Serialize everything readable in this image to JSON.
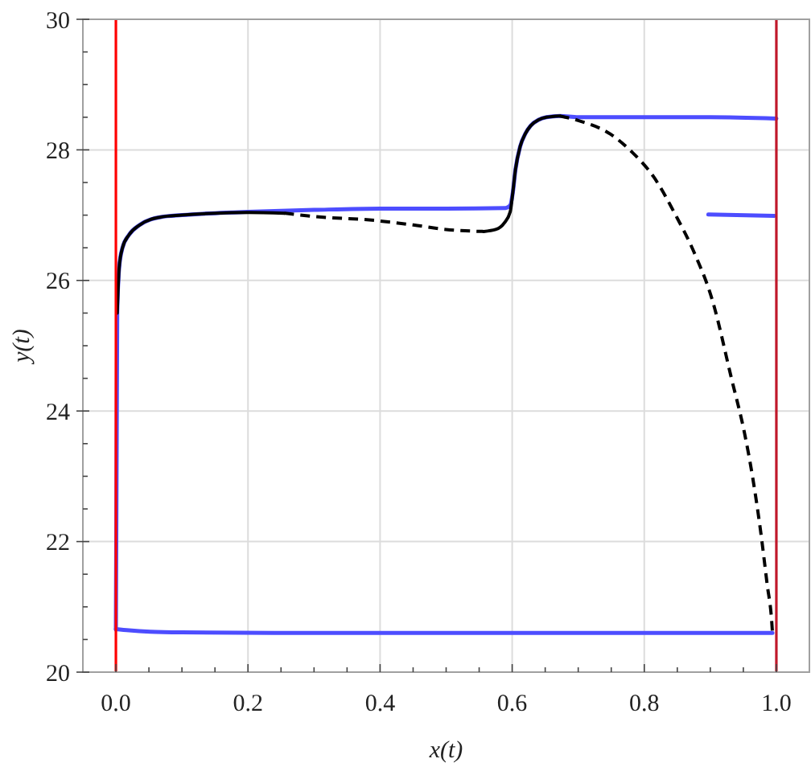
{
  "chart_data": {
    "type": "line",
    "xlabel": "x(t)",
    "ylabel": "y(t)",
    "xlim": [
      -0.05,
      1.05
    ],
    "ylim": [
      20,
      30
    ],
    "xticks": [
      {
        "value": 0,
        "label": "0.0"
      },
      {
        "value": 0.05,
        "label": null
      },
      {
        "value": 0.1,
        "label": null
      },
      {
        "value": 0.15,
        "label": null
      },
      {
        "value": 0.2,
        "label": "0.2"
      },
      {
        "value": 0.25,
        "label": null
      },
      {
        "value": 0.3,
        "label": null
      },
      {
        "value": 0.35,
        "label": null
      },
      {
        "value": 0.4,
        "label": "0.4"
      },
      {
        "value": 0.45,
        "label": null
      },
      {
        "value": 0.5,
        "label": null
      },
      {
        "value": 0.55,
        "label": null
      },
      {
        "value": 0.6,
        "label": "0.6"
      },
      {
        "value": 0.65,
        "label": null
      },
      {
        "value": 0.7,
        "label": null
      },
      {
        "value": 0.75,
        "label": null
      },
      {
        "value": 0.8,
        "label": "0.8"
      },
      {
        "value": 0.85,
        "label": null
      },
      {
        "value": 0.9,
        "label": null
      },
      {
        "value": 0.95,
        "label": null
      },
      {
        "value": 1,
        "label": "1.0"
      }
    ],
    "yticks": [
      20,
      {
        "value": 20.5,
        "label": null
      },
      {
        "value": 21,
        "label": null
      },
      {
        "value": 21.5,
        "label": null
      },
      22,
      {
        "value": 22.5,
        "label": null
      },
      {
        "value": 23,
        "label": null
      },
      {
        "value": 23.5,
        "label": null
      },
      24,
      {
        "value": 24.5,
        "label": null
      },
      {
        "value": 25,
        "label": null
      },
      {
        "value": 25.5,
        "label": null
      },
      26,
      {
        "value": 26.5,
        "label": null
      },
      {
        "value": 27,
        "label": null
      },
      {
        "value": 27.5,
        "label": null
      },
      28,
      {
        "value": 28.5,
        "label": null
      },
      {
        "value": 29,
        "label": null
      },
      {
        "value": 29.5,
        "label": null
      },
      30
    ],
    "grid": true,
    "ref_lines": [
      {
        "axis": "x",
        "value": 0,
        "color": "#ff0000"
      },
      {
        "axis": "x",
        "value": 1,
        "color": "#c0182a"
      }
    ],
    "series": [
      {
        "color": "#4d4dff",
        "line_style": "solid",
        "x": [
          0,
          0.002,
          0.005,
          0.01,
          0.02,
          0.036,
          0.068,
          0.1,
          0.15,
          0.2,
          0.3,
          0.4,
          0.5,
          0.59,
          0.597,
          0.601,
          0.605,
          0.612,
          0.62,
          0.628,
          0.64,
          0.652,
          0.672,
          0.7,
          0.8,
          0.9,
          1.0
        ],
        "values": [
          20.65,
          25.5,
          26.2,
          26.5,
          26.7,
          26.85,
          26.97,
          27.0,
          27.03,
          27.05,
          27.08,
          27.1,
          27.1,
          27.11,
          27.15,
          27.35,
          27.7,
          28.05,
          28.25,
          28.37,
          28.46,
          28.5,
          28.52,
          28.5,
          28.5,
          28.5,
          28.48
        ]
      },
      {
        "color": "#4d4dff",
        "line_style": "solid",
        "x": [
          0,
          0.02,
          0.052,
          0.1,
          0.3,
          0.5,
          0.7,
          0.9,
          0.994
        ],
        "values": [
          20.66,
          20.64,
          20.62,
          20.61,
          20.6,
          20.6,
          20.6,
          20.6,
          20.6
        ]
      },
      {
        "color": "#4d4dff",
        "line_style": "solid",
        "x": [
          0.897,
          0.997
        ],
        "values": [
          27.01,
          26.99
        ]
      },
      {
        "color": "#000000",
        "line_style": "solid",
        "x": [
          0.002,
          0.005,
          0.01,
          0.02,
          0.036,
          0.068,
          0.1,
          0.15,
          0.2,
          0.255
        ],
        "values": [
          25.5,
          26.2,
          26.5,
          26.7,
          26.85,
          26.97,
          27.0,
          27.03,
          27.04,
          27.03
        ]
      },
      {
        "color": "#000000",
        "line_style": "dashed",
        "x": [
          0.255,
          0.311,
          0.38,
          0.45,
          0.5,
          0.557
        ],
        "values": [
          27.03,
          26.97,
          26.93,
          26.85,
          26.78,
          26.75
        ]
      },
      {
        "color": "#000000",
        "line_style": "solid",
        "x": [
          0.557,
          0.575,
          0.588,
          0.597,
          0.601,
          0.605,
          0.612,
          0.62,
          0.628,
          0.64,
          0.652,
          0.672
        ],
        "values": [
          26.75,
          26.78,
          26.88,
          27.05,
          27.35,
          27.7,
          28.05,
          28.25,
          28.37,
          28.46,
          28.5,
          28.52
        ]
      },
      {
        "color": "#000000",
        "line_style": "dashed",
        "x": [
          0.672,
          0.7,
          0.749,
          0.782,
          0.814,
          0.847,
          0.875,
          0.903,
          0.932,
          0.952,
          0.964,
          0.976,
          0.986,
          0.993,
          0.994
        ],
        "values": [
          28.52,
          28.45,
          28.24,
          27.96,
          27.59,
          27.01,
          26.44,
          25.7,
          24.5,
          23.65,
          22.99,
          22.17,
          21.35,
          20.77,
          20.62
        ]
      }
    ]
  }
}
